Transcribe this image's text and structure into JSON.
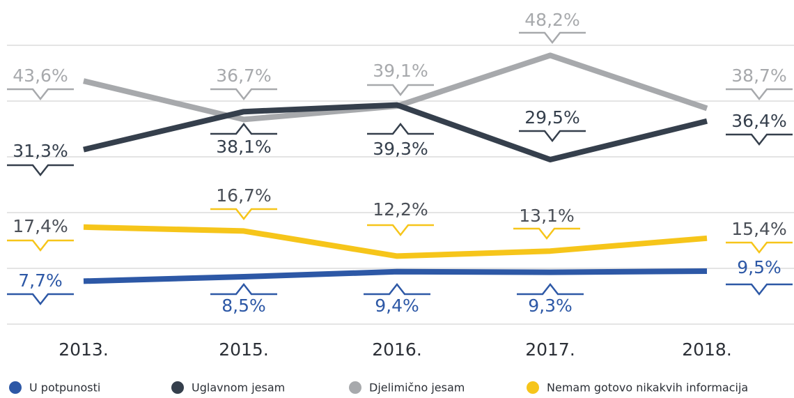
{
  "chart_data": {
    "type": "line",
    "categories": [
      "2013.",
      "2015.",
      "2016.",
      "2017.",
      "2018."
    ],
    "ylim": [
      0,
      50
    ],
    "yticks": [
      0,
      10,
      20,
      30,
      40,
      50
    ],
    "grid": true,
    "series": [
      {
        "name": "U potpunosti",
        "color": "#2d58a6",
        "values": [
          7.7,
          8.5,
          9.4,
          9.3,
          9.5
        ],
        "value_labels": [
          "7,7%",
          "8,5%",
          "9,4%",
          "9,3%",
          "9,5%"
        ]
      },
      {
        "name": "Uglavnom jesam",
        "color": "#353f4c",
        "values": [
          31.3,
          38.1,
          39.3,
          29.5,
          36.4
        ],
        "value_labels": [
          "31,3%",
          "38,1%",
          "39,3%",
          "29,5%",
          "36,4%"
        ]
      },
      {
        "name": "Djelimično jesam",
        "color": "#a7a9ac",
        "values": [
          43.6,
          36.7,
          39.1,
          48.2,
          38.7
        ],
        "value_labels": [
          "43,6%",
          "36,7%",
          "39,1%",
          "48,2%",
          "38,7%"
        ]
      },
      {
        "name": "Nemam gotovo nikakvih informacija",
        "color": "#f6c51a",
        "values": [
          17.4,
          16.7,
          12.2,
          13.1,
          15.4
        ],
        "value_labels": [
          "17,4%",
          "16,7%",
          "12,2%",
          "13,1%",
          "15,4%"
        ]
      }
    ]
  }
}
